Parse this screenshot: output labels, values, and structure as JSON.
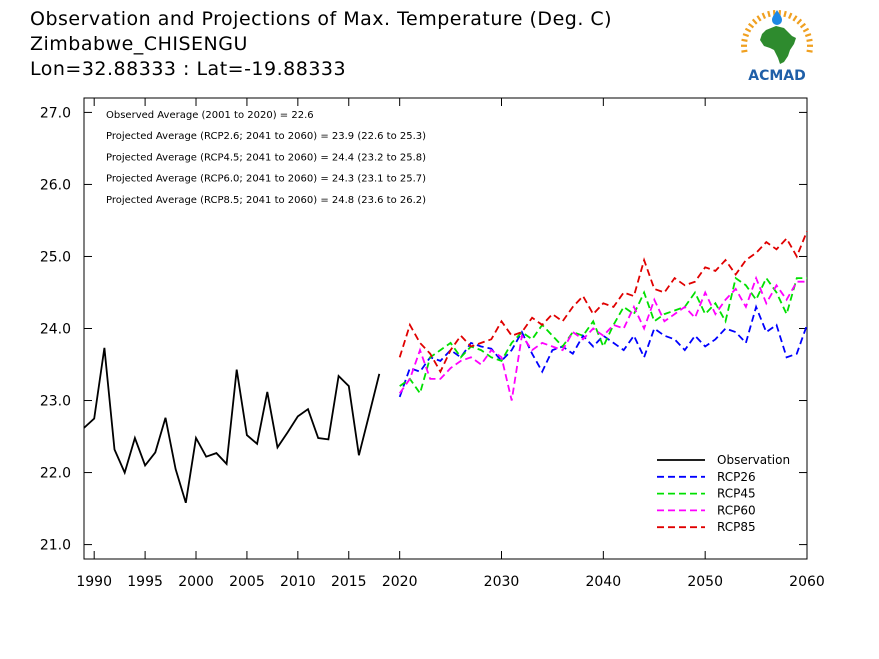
{
  "header": {
    "title": "Observation and Projections of Max. Temperature (Deg. C)",
    "station": "Zimbabwe_CHISENGU",
    "coords": "Lon=32.88333 : Lat=-19.88333"
  },
  "logo": {
    "text": "ACMAD",
    "colors": {
      "africa": "#2e8b2e",
      "rays": "#f0a020",
      "drop": "#1e88e5",
      "text": "#1f5fa8"
    }
  },
  "annotations": [
    "Observed Average (2001 to 2020) = 22.6",
    "Projected Average (RCP2.6; 2041 to 2060) = 23.9 (22.6 to 25.3)",
    "Projected Average (RCP4.5; 2041 to 2060) = 24.4 (23.2 to 25.8)",
    "Projected Average (RCP6.0; 2041 to 2060) = 24.3 (23.1 to 25.7)",
    "Projected Average (RCP8.5; 2041 to 2060) = 24.8 (23.6 to 26.2)"
  ],
  "chart_data": {
    "type": "line",
    "title": "Observation and Projections of Max. Temperature (Deg. C)",
    "xlim": [
      1989,
      2060
    ],
    "ylim": [
      20.8,
      27.2
    ],
    "x_ticks": [
      1990,
      1995,
      2000,
      2005,
      2010,
      2015,
      2020,
      2030,
      2040,
      2050,
      2060
    ],
    "y_ticks": [
      "21.0",
      "22.0",
      "23.0",
      "24.0",
      "25.0",
      "26.0",
      "27.0"
    ],
    "legend_position": "bottom-right",
    "series": [
      {
        "name": "Observation",
        "color": "#000000",
        "dash": false,
        "x": [
          1989,
          1990,
          1991,
          1992,
          1993,
          1994,
          1995,
          1996,
          1997,
          1998,
          1999,
          2000,
          2001,
          2002,
          2003,
          2004,
          2005,
          2006,
          2007,
          2008,
          2009,
          2010,
          2011,
          2012,
          2013,
          2014,
          2015,
          2016,
          2017,
          2018,
          2019
        ],
        "y": [
          22.62,
          22.75,
          23.73,
          22.32,
          22.0,
          22.48,
          22.1,
          22.28,
          22.76,
          22.05,
          21.58,
          22.48,
          22.22,
          22.27,
          22.12,
          23.43,
          22.52,
          22.4,
          23.12,
          22.35,
          22.56,
          22.78,
          22.88,
          22.48,
          22.46,
          23.34,
          23.2,
          22.24,
          22.8,
          23.37,
          null
        ]
      },
      {
        "name": "RCP26",
        "color": "#0000ff",
        "dash": true,
        "x": [
          2020,
          2021,
          2022,
          2023,
          2024,
          2025,
          2026,
          2027,
          2028,
          2029,
          2030,
          2031,
          2032,
          2033,
          2034,
          2035,
          2036,
          2037,
          2038,
          2039,
          2040,
          2041,
          2042,
          2043,
          2044,
          2045,
          2046,
          2047,
          2048,
          2049,
          2050,
          2051,
          2052,
          2053,
          2054,
          2055,
          2056,
          2057,
          2058,
          2059,
          2060
        ],
        "y": [
          23.05,
          23.45,
          23.4,
          23.6,
          23.55,
          23.7,
          23.6,
          23.8,
          23.75,
          23.72,
          23.55,
          23.7,
          23.95,
          23.65,
          23.4,
          23.7,
          23.75,
          23.65,
          23.9,
          23.75,
          23.9,
          23.8,
          23.7,
          23.9,
          23.6,
          24.0,
          23.9,
          23.85,
          23.7,
          23.9,
          23.75,
          23.85,
          24.0,
          23.95,
          23.8,
          24.3,
          23.95,
          24.05,
          23.6,
          23.65,
          24.05
        ]
      },
      {
        "name": "RCP45",
        "color": "#00e000",
        "dash": true,
        "x": [
          2020,
          2021,
          2022,
          2023,
          2024,
          2025,
          2026,
          2027,
          2028,
          2029,
          2030,
          2031,
          2032,
          2033,
          2034,
          2035,
          2036,
          2037,
          2038,
          2039,
          2040,
          2041,
          2042,
          2043,
          2044,
          2045,
          2046,
          2047,
          2048,
          2049,
          2050,
          2051,
          2052,
          2053,
          2054,
          2055,
          2056,
          2057,
          2058,
          2059,
          2060
        ],
        "y": [
          23.2,
          23.3,
          23.1,
          23.6,
          23.7,
          23.8,
          23.6,
          23.75,
          23.7,
          23.6,
          23.55,
          23.8,
          23.95,
          23.85,
          24.05,
          23.9,
          23.75,
          23.95,
          23.9,
          24.1,
          23.75,
          24.05,
          24.3,
          24.2,
          24.5,
          24.1,
          24.2,
          24.25,
          24.3,
          24.5,
          24.2,
          24.35,
          24.1,
          24.7,
          24.6,
          24.4,
          24.7,
          24.5,
          24.2,
          24.7,
          24.7
        ]
      },
      {
        "name": "RCP60",
        "color": "#ff00ff",
        "dash": true,
        "x": [
          2020,
          2021,
          2022,
          2023,
          2024,
          2025,
          2026,
          2027,
          2028,
          2029,
          2030,
          2031,
          2032,
          2033,
          2034,
          2035,
          2036,
          2037,
          2038,
          2039,
          2040,
          2041,
          2042,
          2043,
          2044,
          2045,
          2046,
          2047,
          2048,
          2049,
          2050,
          2051,
          2052,
          2053,
          2054,
          2055,
          2056,
          2057,
          2058,
          2059,
          2060
        ],
        "y": [
          23.1,
          23.3,
          23.7,
          23.3,
          23.3,
          23.45,
          23.55,
          23.6,
          23.5,
          23.7,
          23.6,
          23.0,
          23.9,
          23.7,
          23.8,
          23.75,
          23.7,
          23.95,
          23.85,
          24.0,
          23.9,
          24.05,
          24.0,
          24.3,
          24.0,
          24.4,
          24.1,
          24.2,
          24.3,
          24.15,
          24.5,
          24.2,
          24.4,
          24.55,
          24.3,
          24.7,
          24.35,
          24.6,
          24.4,
          24.65,
          24.65
        ]
      },
      {
        "name": "RCP85",
        "color": "#e00000",
        "dash": true,
        "x": [
          2020,
          2021,
          2022,
          2023,
          2024,
          2025,
          2026,
          2027,
          2028,
          2029,
          2030,
          2031,
          2032,
          2033,
          2034,
          2035,
          2036,
          2037,
          2038,
          2039,
          2040,
          2041,
          2042,
          2043,
          2044,
          2045,
          2046,
          2047,
          2048,
          2049,
          2050,
          2051,
          2052,
          2053,
          2054,
          2055,
          2056,
          2057,
          2058,
          2059,
          2060
        ],
        "y": [
          23.6,
          24.05,
          23.8,
          23.65,
          23.4,
          23.7,
          23.9,
          23.75,
          23.8,
          23.85,
          24.1,
          23.9,
          23.95,
          24.15,
          24.05,
          24.2,
          24.1,
          24.3,
          24.45,
          24.2,
          24.35,
          24.3,
          24.5,
          24.45,
          24.95,
          24.55,
          24.5,
          24.7,
          24.6,
          24.65,
          24.85,
          24.8,
          24.95,
          24.75,
          24.95,
          25.05,
          25.2,
          25.1,
          25.25,
          25.0,
          25.35
        ]
      }
    ]
  }
}
